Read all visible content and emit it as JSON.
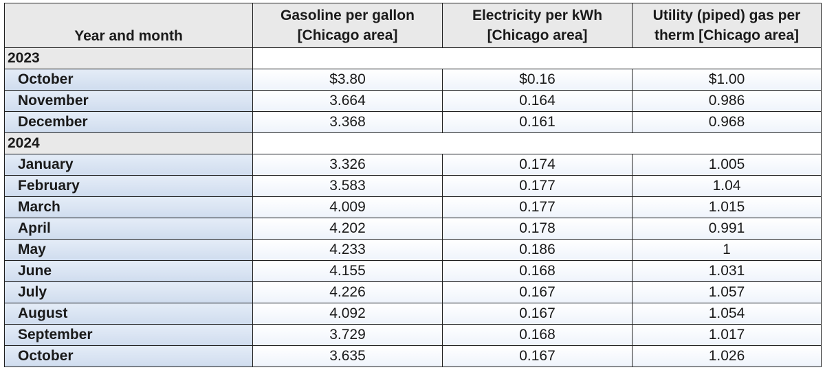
{
  "chart_data": {
    "type": "table",
    "columns": [
      "Year and month",
      "Gasoline per gallon [Chicago area]",
      "Electricity per kWh [Chicago area]",
      "Utility (piped) gas per therm [Chicago area]"
    ],
    "header_lines": [
      [
        "Year and month"
      ],
      [
        "Gasoline per gallon",
        "[Chicago area]"
      ],
      [
        "Electricity per kWh",
        "[Chicago area]"
      ],
      [
        "Utility (piped) gas per",
        "therm [Chicago area]"
      ]
    ],
    "groups": [
      {
        "year": "2023",
        "rows": [
          {
            "month": "October",
            "values": [
              "$3.80",
              "$0.16",
              "$1.00"
            ]
          },
          {
            "month": "November",
            "values": [
              "3.664",
              "0.164",
              "0.986"
            ]
          },
          {
            "month": "December",
            "values": [
              "3.368",
              "0.161",
              "0.968"
            ]
          }
        ]
      },
      {
        "year": "2024",
        "rows": [
          {
            "month": "January",
            "values": [
              "3.326",
              "0.174",
              "1.005"
            ]
          },
          {
            "month": "February",
            "values": [
              "3.583",
              "0.177",
              "1.04"
            ]
          },
          {
            "month": "March",
            "values": [
              "4.009",
              "0.177",
              "1.015"
            ]
          },
          {
            "month": "April",
            "values": [
              "4.202",
              "0.178",
              "0.991"
            ]
          },
          {
            "month": "May",
            "values": [
              "4.233",
              "0.186",
              "1"
            ]
          },
          {
            "month": "June",
            "values": [
              "4.155",
              "0.168",
              "1.031"
            ]
          },
          {
            "month": "July",
            "values": [
              "4.226",
              "0.167",
              "1.057"
            ]
          },
          {
            "month": "August",
            "values": [
              "4.092",
              "0.167",
              "1.054"
            ]
          },
          {
            "month": "September",
            "values": [
              "3.729",
              "0.168",
              "1.017"
            ]
          },
          {
            "month": "October",
            "values": [
              "3.635",
              "0.167",
              "1.026"
            ]
          }
        ]
      }
    ]
  }
}
